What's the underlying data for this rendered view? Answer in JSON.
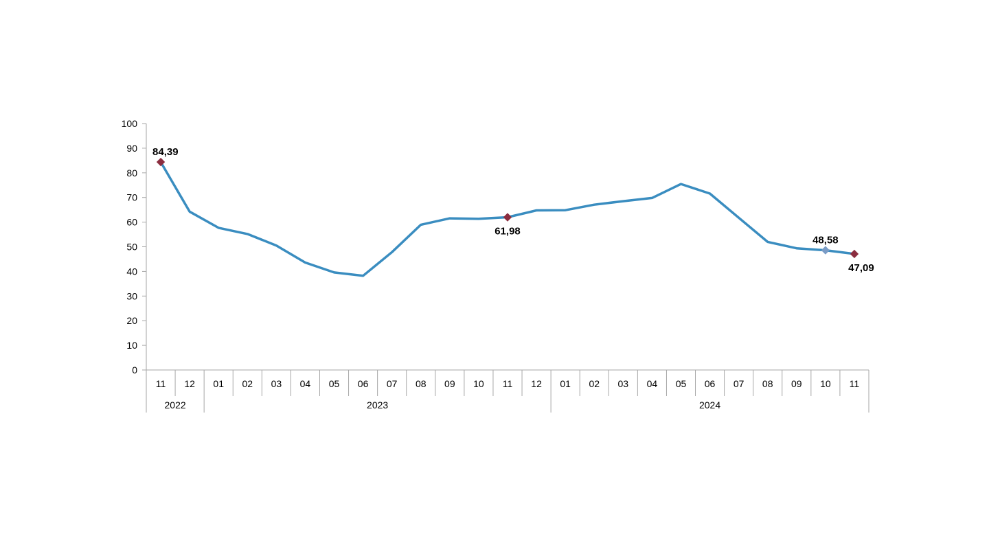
{
  "chart_data": {
    "type": "line",
    "title": "",
    "xlabel": "",
    "ylabel": "",
    "ylim": [
      0,
      100
    ],
    "yticks": [
      "0",
      "10",
      "20",
      "30",
      "40",
      "50",
      "60",
      "70",
      "80",
      "90",
      "100"
    ],
    "grid": false,
    "legend": "none",
    "categories": [
      "11",
      "12",
      "01",
      "02",
      "03",
      "04",
      "05",
      "06",
      "07",
      "08",
      "09",
      "10",
      "11",
      "12",
      "01",
      "02",
      "03",
      "04",
      "05",
      "06",
      "07",
      "08",
      "09",
      "10",
      "11"
    ],
    "years": [
      {
        "label": "2022",
        "start": 0,
        "count": 2
      },
      {
        "label": "2023",
        "start": 2,
        "count": 12
      },
      {
        "label": "2024",
        "start": 14,
        "count": 11
      }
    ],
    "series": [
      {
        "values": [
          84.39,
          64.27,
          57.68,
          55.18,
          50.51,
          43.58,
          39.59,
          38.21,
          47.83,
          58.94,
          61.53,
          61.36,
          61.98,
          64.77,
          64.86,
          67.07,
          68.5,
          69.8,
          75.45,
          71.6,
          61.78,
          51.97,
          49.38,
          48.58,
          47.09
        ]
      }
    ],
    "annotations": [
      {
        "index": 0,
        "text": "84,39",
        "marker": "#8B2D3F",
        "pos": "above"
      },
      {
        "index": 12,
        "text": "61,98",
        "marker": "#8B2D3F",
        "pos": "below"
      },
      {
        "index": 23,
        "text": "48,58",
        "marker": "#7A9CC6",
        "pos": "above"
      },
      {
        "index": 24,
        "text": "47,09",
        "marker": "#8B2D3F",
        "pos": "below"
      }
    ],
    "colors": {
      "line": "#3A8DC0",
      "axis": "#A6A6A6"
    }
  }
}
